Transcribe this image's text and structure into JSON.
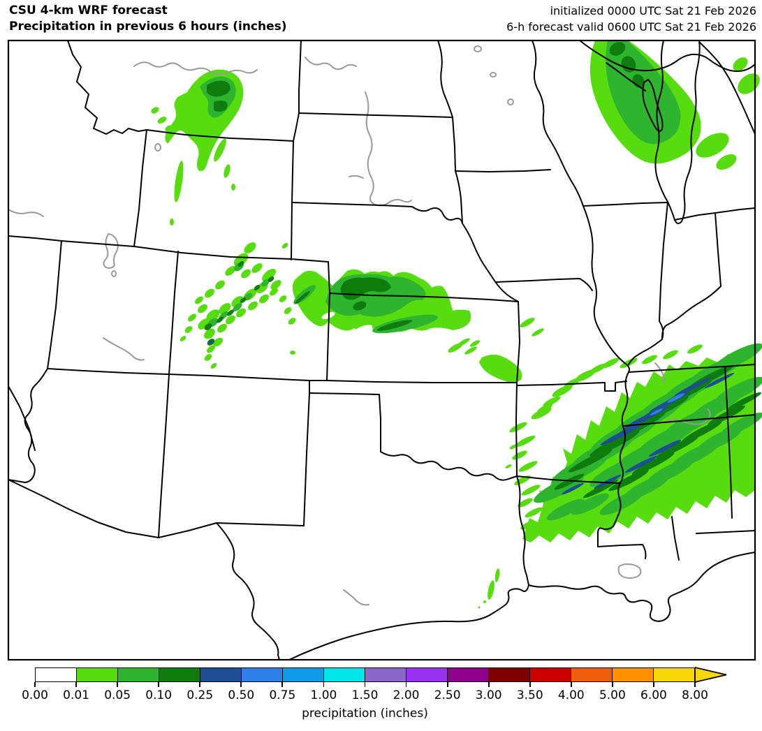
{
  "header": {
    "title_line1": "CSU 4-km WRF forecast",
    "title_line2": "Precipitation in previous 6 hours (inches)",
    "init_line1": "initialized 0000 UTC Sat 21 Feb 2026",
    "init_line2": "6-h forecast valid 0600 UTC Sat 21 Feb 2026"
  },
  "colorbar": {
    "label": "precipitation (inches)",
    "tick_labels": [
      "0.00",
      "0.01",
      "0.05",
      "0.10",
      "0.25",
      "0.50",
      "0.75",
      "1.00",
      "1.50",
      "2.00",
      "2.50",
      "3.00",
      "3.50",
      "4.00",
      "5.00",
      "6.00",
      "8.00"
    ],
    "segment_colors": [
      "#ffffff",
      "#57dc0f",
      "#2eb42e",
      "#0e7d0e",
      "#1e4d94",
      "#2e7fe8",
      "#0f9be8",
      "#00e5e5",
      "#8a68c9",
      "#9932f0",
      "#8c008c",
      "#7e0000",
      "#cc0000",
      "#ee5e0d",
      "#ff9000",
      "#f7d708"
    ],
    "arrow_color": "#f7d708"
  },
  "map": {
    "background_color": "#ffffff",
    "border_color": "#000000",
    "river_color": "#999999",
    "precip_shade_colors": {
      "light_green_0.01": "#57dc0f",
      "green_0.05": "#2eb42e",
      "dark_green_0.10": "#0e7d0e",
      "navy_0.25": "#1e4d94",
      "blue_0.50": "#2e7fe8"
    }
  }
}
